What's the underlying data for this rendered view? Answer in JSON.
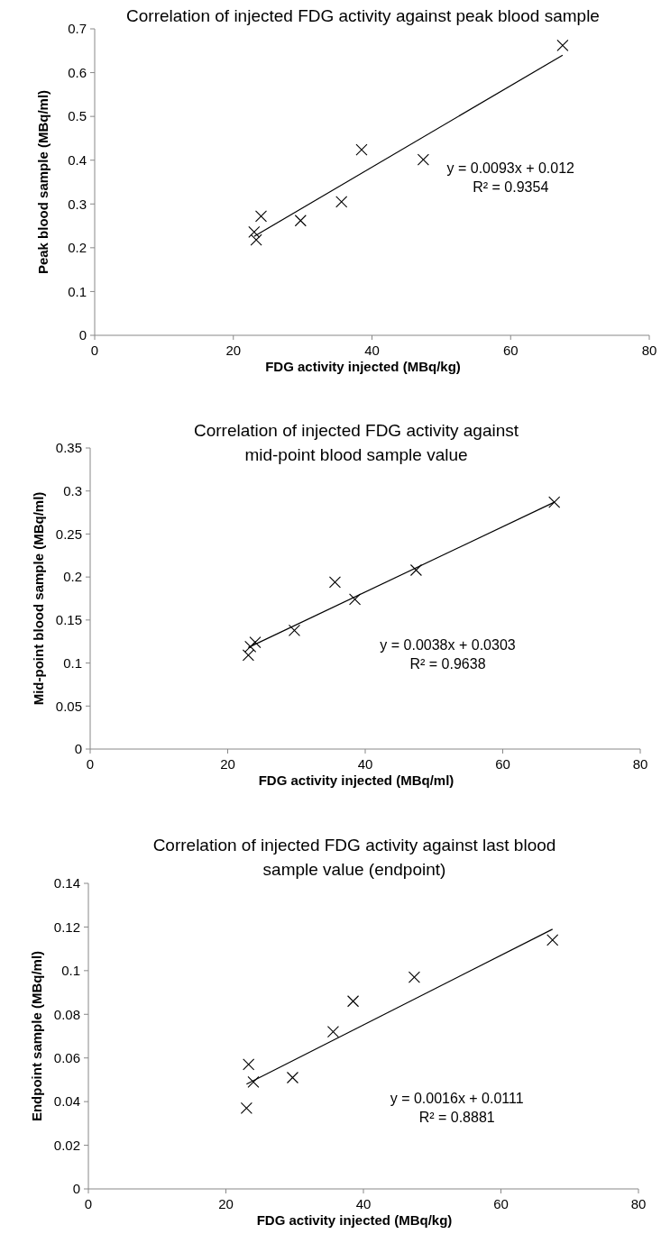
{
  "chart_data": [
    {
      "type": "scatter",
      "title": "Correlation of injected FDG activity against peak blood sample",
      "xlabel": "FDG activity injected (MBq/kg)",
      "ylabel": "Peak blood sample (MBq/ml)",
      "xlim": [
        0,
        80
      ],
      "xticks": [
        0,
        20,
        40,
        60,
        80
      ],
      "ylim": [
        0,
        0.7
      ],
      "yticks": [
        0,
        0.1,
        0.2,
        0.3,
        0.4,
        0.5,
        0.6,
        0.7
      ],
      "grid": false,
      "annotations": [
        "y = 0.0093x + 0.012",
        "R² = 0.9354"
      ],
      "series": [
        {
          "marker": "cross",
          "color": "#000000",
          "x": [
            23.0,
            23.3,
            24.0,
            29.7,
            35.6,
            38.5,
            47.4,
            67.5
          ],
          "values": [
            0.236,
            0.218,
            0.272,
            0.262,
            0.305,
            0.424,
            0.401,
            0.662
          ]
        },
        {
          "type": "line",
          "marker": "none",
          "color": "#000000",
          "x": [
            23.0,
            67.5
          ],
          "values": [
            0.226,
            0.64
          ]
        }
      ]
    },
    {
      "type": "scatter",
      "title": "Correlation of injected FDG activity against mid-point blood sample value",
      "xlabel": "FDG activity injected (MBq/ml)",
      "ylabel": "Mid-point blood sample (MBq/ml)",
      "xlim": [
        0,
        80
      ],
      "xticks": [
        0,
        20,
        40,
        60,
        80
      ],
      "ylim": [
        0,
        0.35
      ],
      "yticks": [
        0,
        0.05,
        0.1,
        0.15,
        0.2,
        0.25,
        0.3,
        0.35
      ],
      "grid": false,
      "annotations": [
        "y = 0.0038x + 0.0303",
        "R² = 0.9638"
      ],
      "series": [
        {
          "marker": "cross",
          "color": "#000000",
          "x": [
            23.0,
            23.3,
            24.0,
            29.7,
            35.6,
            38.5,
            47.4,
            67.5
          ],
          "values": [
            0.109,
            0.119,
            0.124,
            0.138,
            0.194,
            0.174,
            0.208,
            0.287
          ]
        },
        {
          "type": "line",
          "marker": "none",
          "color": "#000000",
          "x": [
            23.0,
            67.5
          ],
          "values": [
            0.118,
            0.287
          ]
        }
      ]
    },
    {
      "type": "scatter",
      "title": "Correlation of injected FDG activity against last blood sample value (endpoint)",
      "xlabel": "FDG activity injected (MBq/kg)",
      "ylabel": "Endpoint sample (MBq/ml)",
      "xlim": [
        0,
        80
      ],
      "xticks": [
        0,
        20,
        40,
        60,
        80
      ],
      "ylim": [
        0,
        0.14
      ],
      "yticks": [
        0,
        0.02,
        0.04,
        0.06,
        0.08,
        0.1,
        0.12,
        0.14
      ],
      "grid": false,
      "annotations": [
        "y = 0.0016x + 0.0111",
        "R² = 0.8881"
      ],
      "series": [
        {
          "marker": "cross",
          "color": "#000000",
          "x": [
            23.0,
            23.3,
            24.0,
            29.7,
            35.6,
            38.5,
            47.4,
            67.5
          ],
          "values": [
            0.037,
            0.057,
            0.049,
            0.051,
            0.072,
            0.086,
            0.097,
            0.114
          ]
        },
        {
          "type": "line",
          "marker": "none",
          "color": "#000000",
          "x": [
            23.0,
            67.5
          ],
          "values": [
            0.048,
            0.119
          ]
        }
      ]
    }
  ]
}
